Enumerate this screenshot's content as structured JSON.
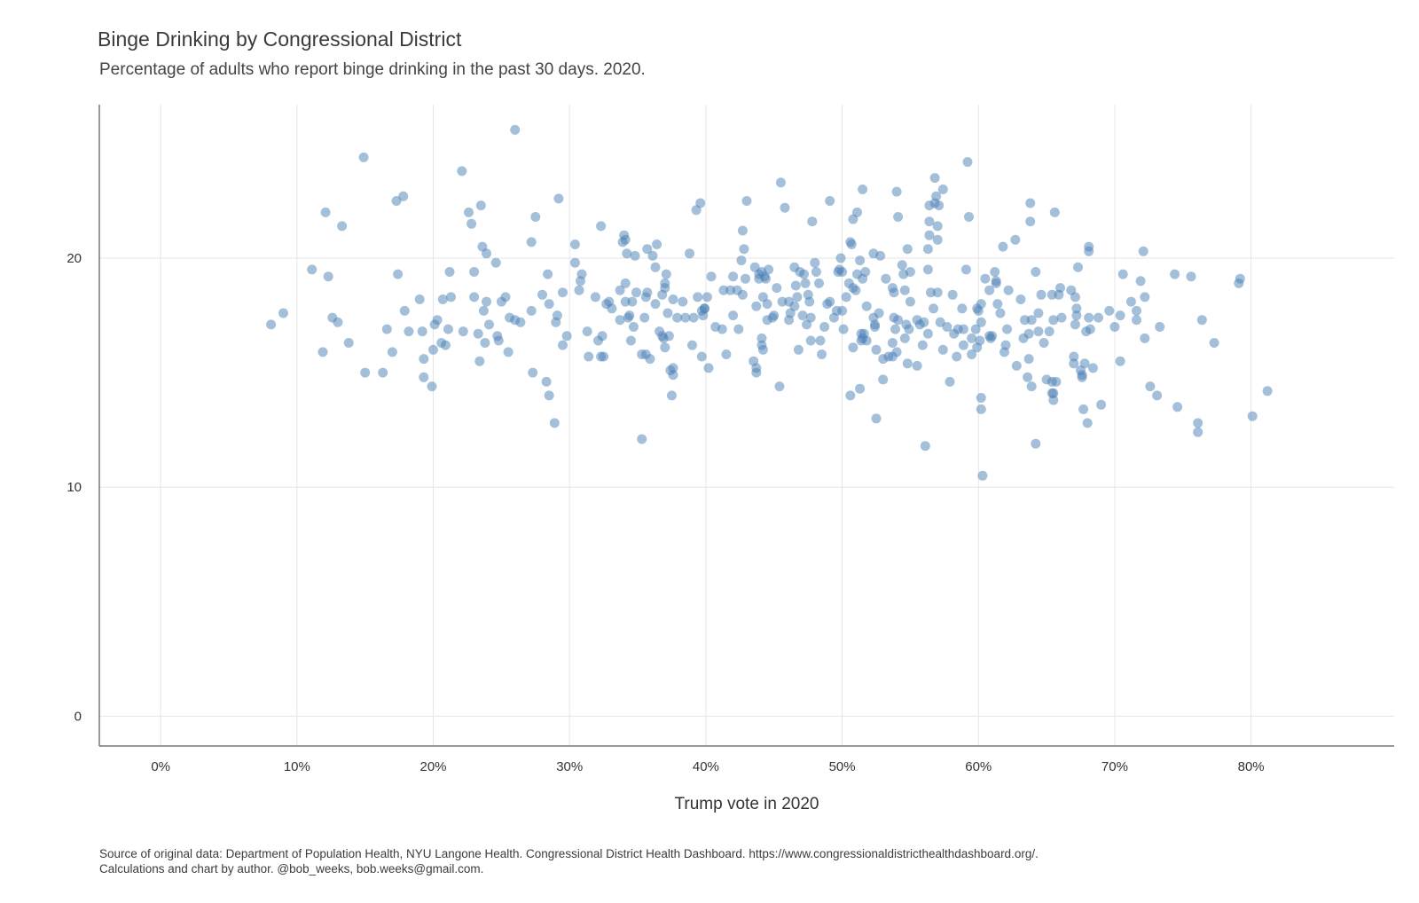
{
  "chart_data": {
    "type": "scatter",
    "title": "Binge Drinking by Congressional District",
    "subtitle": "Percentage of adults who report binge drinking in the past 30 days. 2020.",
    "xlabel": "Trump vote in 2020",
    "ylabel": "",
    "xlim": [
      -4.5,
      90.5
    ],
    "ylim": [
      -1.3,
      26.7
    ],
    "x_ticks": [
      0,
      10,
      20,
      30,
      40,
      50,
      60,
      70,
      80
    ],
    "x_tick_labels": [
      "0%",
      "10%",
      "20%",
      "30%",
      "40%",
      "50%",
      "60%",
      "70%",
      "80%"
    ],
    "y_ticks": [
      0,
      10,
      20
    ],
    "y_tick_labels": [
      "0",
      "10",
      "20"
    ],
    "grid": true,
    "point_color": "#4a7fb5",
    "points": [
      [
        8.1,
        17.1
      ],
      [
        9.0,
        17.6
      ],
      [
        11.1,
        19.5
      ],
      [
        11.9,
        15.9
      ],
      [
        12.1,
        22.0
      ],
      [
        12.3,
        19.2
      ],
      [
        12.6,
        17.4
      ],
      [
        13.0,
        17.2
      ],
      [
        13.3,
        21.4
      ],
      [
        13.8,
        16.3
      ],
      [
        14.9,
        24.4
      ],
      [
        15.0,
        15.0
      ],
      [
        16.3,
        15.0
      ],
      [
        16.6,
        16.9
      ],
      [
        17.0,
        15.9
      ],
      [
        17.3,
        22.5
      ],
      [
        17.4,
        19.3
      ],
      [
        17.8,
        22.7
      ],
      [
        17.9,
        17.7
      ],
      [
        18.2,
        16.8
      ],
      [
        19.0,
        18.2
      ],
      [
        19.2,
        16.8
      ],
      [
        19.3,
        14.8
      ],
      [
        19.3,
        15.6
      ],
      [
        19.9,
        14.4
      ],
      [
        20.0,
        16.0
      ],
      [
        20.1,
        17.1
      ],
      [
        20.3,
        17.3
      ],
      [
        20.6,
        16.3
      ],
      [
        20.7,
        18.2
      ],
      [
        20.9,
        16.2
      ],
      [
        21.1,
        16.9
      ],
      [
        21.2,
        19.4
      ],
      [
        21.3,
        18.3
      ],
      [
        22.1,
        23.8
      ],
      [
        22.2,
        16.8
      ],
      [
        22.6,
        22.0
      ],
      [
        22.8,
        21.5
      ],
      [
        23.0,
        19.4
      ],
      [
        23.0,
        18.3
      ],
      [
        23.3,
        16.7
      ],
      [
        23.4,
        15.5
      ],
      [
        23.5,
        22.3
      ],
      [
        23.6,
        20.5
      ],
      [
        23.7,
        17.7
      ],
      [
        23.8,
        16.3
      ],
      [
        23.9,
        18.1
      ],
      [
        23.9,
        20.2
      ],
      [
        24.1,
        17.1
      ],
      [
        24.6,
        19.8
      ],
      [
        24.7,
        16.6
      ],
      [
        24.8,
        16.4
      ],
      [
        25.0,
        18.1
      ],
      [
        25.3,
        18.3
      ],
      [
        25.5,
        15.9
      ],
      [
        25.6,
        17.4
      ],
      [
        26.0,
        25.6
      ],
      [
        26.0,
        17.3
      ],
      [
        26.4,
        17.2
      ],
      [
        27.2,
        20.7
      ],
      [
        27.2,
        17.7
      ],
      [
        27.3,
        15.0
      ],
      [
        27.5,
        21.8
      ],
      [
        28.0,
        18.4
      ],
      [
        28.3,
        14.6
      ],
      [
        28.4,
        19.3
      ],
      [
        28.5,
        14.0
      ],
      [
        28.5,
        18.0
      ],
      [
        28.9,
        12.8
      ],
      [
        29.0,
        17.2
      ],
      [
        29.1,
        17.5
      ],
      [
        29.2,
        22.6
      ],
      [
        29.5,
        18.5
      ],
      [
        29.5,
        16.2
      ],
      [
        29.8,
        16.6
      ],
      [
        30.4,
        19.8
      ],
      [
        30.4,
        20.6
      ],
      [
        30.7,
        18.6
      ],
      [
        30.8,
        19.0
      ],
      [
        30.9,
        19.3
      ],
      [
        31.3,
        16.8
      ],
      [
        31.4,
        15.7
      ],
      [
        31.9,
        18.3
      ],
      [
        32.1,
        16.4
      ],
      [
        32.3,
        21.4
      ],
      [
        32.3,
        15.7
      ],
      [
        32.4,
        16.6
      ],
      [
        32.5,
        15.7
      ],
      [
        32.7,
        18.0
      ],
      [
        32.9,
        18.1
      ],
      [
        33.1,
        17.8
      ],
      [
        33.7,
        17.3
      ],
      [
        33.7,
        18.6
      ],
      [
        33.9,
        20.7
      ],
      [
        34.0,
        21.0
      ],
      [
        34.1,
        20.8
      ],
      [
        34.1,
        18.9
      ],
      [
        34.1,
        18.1
      ],
      [
        34.2,
        20.2
      ],
      [
        34.3,
        17.4
      ],
      [
        34.4,
        17.5
      ],
      [
        34.5,
        16.4
      ],
      [
        34.6,
        18.1
      ],
      [
        34.7,
        17.0
      ],
      [
        34.9,
        18.5
      ],
      [
        34.8,
        20.1
      ],
      [
        35.3,
        15.8
      ],
      [
        35.3,
        12.1
      ],
      [
        35.5,
        17.4
      ],
      [
        35.6,
        15.8
      ],
      [
        35.6,
        18.3
      ],
      [
        35.7,
        20.4
      ],
      [
        35.7,
        18.5
      ],
      [
        35.9,
        15.6
      ],
      [
        36.1,
        20.1
      ],
      [
        36.3,
        18.0
      ],
      [
        36.3,
        19.6
      ],
      [
        36.4,
        20.6
      ],
      [
        36.6,
        16.8
      ],
      [
        36.8,
        16.6
      ],
      [
        36.8,
        18.4
      ],
      [
        36.9,
        16.5
      ],
      [
        37.0,
        16.1
      ],
      [
        37.0,
        18.9
      ],
      [
        37.0,
        18.7
      ],
      [
        37.1,
        19.3
      ],
      [
        37.2,
        17.6
      ],
      [
        37.3,
        16.6
      ],
      [
        37.4,
        15.1
      ],
      [
        37.5,
        14.0
      ],
      [
        37.6,
        18.2
      ],
      [
        37.6,
        15.2
      ],
      [
        37.6,
        14.9
      ],
      [
        37.9,
        17.4
      ],
      [
        38.3,
        18.1
      ],
      [
        38.5,
        17.4
      ],
      [
        38.8,
        20.2
      ],
      [
        39.0,
        16.2
      ],
      [
        39.1,
        17.4
      ],
      [
        39.3,
        22.1
      ],
      [
        39.4,
        18.3
      ],
      [
        39.6,
        22.4
      ],
      [
        39.7,
        15.7
      ],
      [
        39.7,
        17.7
      ],
      [
        39.8,
        17.5
      ],
      [
        39.9,
        17.8
      ],
      [
        39.9,
        17.8
      ],
      [
        40.1,
        18.3
      ],
      [
        40.2,
        15.2
      ],
      [
        40.4,
        19.2
      ],
      [
        40.7,
        17.0
      ],
      [
        41.2,
        16.9
      ],
      [
        41.3,
        18.6
      ],
      [
        41.5,
        15.8
      ],
      [
        41.8,
        18.6
      ],
      [
        42.0,
        17.5
      ],
      [
        42.0,
        19.2
      ],
      [
        42.3,
        18.6
      ],
      [
        42.4,
        16.9
      ],
      [
        42.6,
        19.9
      ],
      [
        42.7,
        18.4
      ],
      [
        42.7,
        21.2
      ],
      [
        42.8,
        20.4
      ],
      [
        42.9,
        19.1
      ],
      [
        43.0,
        22.5
      ],
      [
        43.5,
        15.5
      ],
      [
        43.6,
        19.6
      ],
      [
        43.7,
        15.0
      ],
      [
        43.7,
        15.2
      ],
      [
        43.7,
        17.9
      ],
      [
        43.9,
        19.1
      ],
      [
        43.9,
        19.3
      ],
      [
        44.1,
        19.4
      ],
      [
        44.1,
        16.5
      ],
      [
        44.1,
        16.2
      ],
      [
        44.2,
        16.0
      ],
      [
        44.2,
        18.3
      ],
      [
        44.3,
        19.2
      ],
      [
        44.4,
        19.1
      ],
      [
        44.5,
        18.0
      ],
      [
        44.5,
        17.3
      ],
      [
        44.6,
        19.5
      ],
      [
        44.9,
        17.4
      ],
      [
        45.0,
        17.5
      ],
      [
        45.2,
        18.7
      ],
      [
        45.4,
        14.4
      ],
      [
        45.5,
        23.3
      ],
      [
        45.6,
        18.1
      ],
      [
        45.8,
        22.2
      ],
      [
        46.1,
        17.3
      ],
      [
        46.1,
        18.1
      ],
      [
        46.2,
        17.6
      ],
      [
        46.5,
        19.6
      ],
      [
        46.5,
        17.9
      ],
      [
        46.6,
        18.8
      ],
      [
        46.7,
        18.3
      ],
      [
        46.8,
        16.0
      ],
      [
        46.9,
        19.4
      ],
      [
        47.1,
        17.5
      ],
      [
        47.2,
        19.3
      ],
      [
        47.3,
        18.9
      ],
      [
        47.4,
        17.1
      ],
      [
        47.5,
        18.4
      ],
      [
        47.6,
        18.1
      ],
      [
        47.7,
        17.4
      ],
      [
        47.7,
        16.4
      ],
      [
        47.8,
        21.6
      ],
      [
        48.0,
        19.8
      ],
      [
        48.1,
        19.4
      ],
      [
        48.3,
        18.9
      ],
      [
        48.4,
        16.4
      ],
      [
        48.5,
        15.8
      ],
      [
        48.7,
        17.0
      ],
      [
        48.9,
        18.0
      ],
      [
        49.1,
        22.5
      ],
      [
        49.1,
        18.1
      ],
      [
        49.4,
        17.4
      ],
      [
        49.6,
        17.7
      ],
      [
        49.7,
        19.4
      ],
      [
        49.8,
        19.5
      ],
      [
        49.9,
        20.0
      ],
      [
        50.0,
        19.4
      ],
      [
        50.0,
        17.7
      ],
      [
        50.1,
        16.9
      ],
      [
        50.3,
        18.3
      ],
      [
        50.5,
        18.9
      ],
      [
        50.6,
        14.0
      ],
      [
        50.6,
        20.7
      ],
      [
        50.7,
        20.6
      ],
      [
        50.8,
        18.7
      ],
      [
        50.8,
        21.7
      ],
      [
        50.8,
        16.1
      ],
      [
        51.0,
        18.6
      ],
      [
        51.1,
        19.3
      ],
      [
        51.1,
        22.0
      ],
      [
        51.3,
        14.3
      ],
      [
        51.3,
        19.9
      ],
      [
        51.4,
        16.7
      ],
      [
        51.4,
        16.4
      ],
      [
        51.5,
        19.1
      ],
      [
        51.5,
        23.0
      ],
      [
        51.5,
        16.5
      ],
      [
        51.6,
        16.7
      ],
      [
        51.7,
        19.4
      ],
      [
        51.8,
        17.9
      ],
      [
        51.8,
        16.4
      ],
      [
        52.3,
        17.4
      ],
      [
        52.3,
        20.2
      ],
      [
        52.4,
        17.1
      ],
      [
        52.4,
        17.0
      ],
      [
        52.5,
        13.0
      ],
      [
        52.5,
        16.0
      ],
      [
        52.7,
        17.6
      ],
      [
        52.8,
        20.1
      ],
      [
        53.0,
        15.6
      ],
      [
        53.0,
        14.7
      ],
      [
        53.2,
        19.1
      ],
      [
        53.4,
        15.7
      ],
      [
        53.7,
        15.7
      ],
      [
        53.7,
        16.3
      ],
      [
        53.7,
        18.7
      ],
      [
        53.8,
        18.5
      ],
      [
        53.8,
        17.4
      ],
      [
        53.9,
        16.9
      ],
      [
        54.0,
        22.9
      ],
      [
        54.0,
        15.9
      ],
      [
        54.1,
        21.8
      ],
      [
        54.1,
        17.3
      ],
      [
        54.4,
        19.7
      ],
      [
        54.5,
        19.3
      ],
      [
        54.6,
        18.6
      ],
      [
        54.6,
        16.5
      ],
      [
        54.7,
        17.1
      ],
      [
        54.8,
        20.4
      ],
      [
        54.8,
        15.4
      ],
      [
        54.9,
        16.9
      ],
      [
        55.0,
        19.4
      ],
      [
        55.0,
        18.1
      ],
      [
        55.5,
        15.3
      ],
      [
        55.5,
        17.3
      ],
      [
        55.7,
        17.1
      ],
      [
        55.9,
        16.2
      ],
      [
        56.0,
        17.2
      ],
      [
        56.1,
        11.8
      ],
      [
        56.3,
        16.7
      ],
      [
        56.3,
        20.4
      ],
      [
        56.3,
        19.5
      ],
      [
        56.4,
        21.6
      ],
      [
        56.4,
        21.0
      ],
      [
        56.4,
        22.3
      ],
      [
        56.5,
        18.5
      ],
      [
        56.7,
        17.8
      ],
      [
        56.8,
        22.4
      ],
      [
        56.8,
        23.5
      ],
      [
        56.9,
        22.7
      ],
      [
        57.0,
        18.5
      ],
      [
        57.0,
        21.4
      ],
      [
        57.0,
        20.8
      ],
      [
        57.1,
        22.3
      ],
      [
        57.2,
        17.2
      ],
      [
        57.4,
        16.0
      ],
      [
        57.4,
        23.0
      ],
      [
        57.7,
        17.0
      ],
      [
        57.9,
        14.6
      ],
      [
        58.1,
        18.4
      ],
      [
        58.2,
        16.7
      ],
      [
        58.4,
        15.7
      ],
      [
        58.5,
        16.9
      ],
      [
        58.8,
        17.8
      ],
      [
        58.9,
        16.9
      ],
      [
        58.9,
        16.2
      ],
      [
        59.2,
        24.2
      ],
      [
        59.1,
        19.5
      ],
      [
        59.3,
        21.8
      ],
      [
        59.5,
        15.8
      ],
      [
        59.5,
        16.5
      ],
      [
        59.8,
        16.9
      ],
      [
        59.9,
        16.1
      ],
      [
        59.9,
        17.8
      ],
      [
        60.0,
        17.7
      ],
      [
        60.1,
        16.4
      ],
      [
        60.2,
        17.2
      ],
      [
        60.2,
        13.4
      ],
      [
        60.2,
        13.9
      ],
      [
        60.2,
        18.0
      ],
      [
        60.3,
        10.5
      ],
      [
        60.5,
        19.1
      ],
      [
        60.8,
        16.6
      ],
      [
        60.8,
        18.6
      ],
      [
        60.9,
        16.5
      ],
      [
        61.0,
        16.6
      ],
      [
        61.2,
        19.4
      ],
      [
        61.3,
        18.9
      ],
      [
        61.3,
        19.0
      ],
      [
        61.4,
        18.0
      ],
      [
        61.6,
        17.6
      ],
      [
        61.8,
        20.5
      ],
      [
        61.9,
        15.9
      ],
      [
        62.0,
        16.2
      ],
      [
        62.1,
        16.9
      ],
      [
        62.2,
        18.6
      ],
      [
        62.7,
        20.8
      ],
      [
        62.8,
        15.3
      ],
      [
        63.1,
        18.2
      ],
      [
        63.3,
        16.5
      ],
      [
        63.4,
        17.3
      ],
      [
        63.6,
        14.8
      ],
      [
        63.7,
        16.7
      ],
      [
        63.7,
        15.6
      ],
      [
        63.8,
        22.4
      ],
      [
        63.8,
        21.6
      ],
      [
        63.9,
        17.3
      ],
      [
        63.9,
        14.4
      ],
      [
        64.2,
        11.9
      ],
      [
        64.2,
        19.4
      ],
      [
        64.4,
        16.8
      ],
      [
        64.4,
        17.6
      ],
      [
        64.6,
        18.4
      ],
      [
        64.8,
        16.3
      ],
      [
        65.0,
        14.7
      ],
      [
        65.2,
        16.8
      ],
      [
        65.4,
        18.4
      ],
      [
        65.4,
        14.6
      ],
      [
        65.4,
        14.1
      ],
      [
        65.5,
        13.8
      ],
      [
        65.5,
        14.1
      ],
      [
        65.5,
        17.3
      ],
      [
        65.6,
        22.0
      ],
      [
        65.7,
        14.6
      ],
      [
        65.9,
        18.4
      ],
      [
        66.0,
        18.7
      ],
      [
        66.1,
        17.4
      ],
      [
        66.8,
        18.6
      ],
      [
        67.0,
        15.7
      ],
      [
        67.0,
        15.4
      ],
      [
        67.1,
        18.3
      ],
      [
        67.1,
        17.1
      ],
      [
        67.2,
        17.5
      ],
      [
        67.2,
        17.8
      ],
      [
        67.3,
        19.6
      ],
      [
        67.5,
        15.1
      ],
      [
        67.6,
        14.8
      ],
      [
        67.6,
        14.9
      ],
      [
        67.7,
        13.4
      ],
      [
        67.8,
        15.4
      ],
      [
        67.9,
        16.8
      ],
      [
        68.0,
        12.8
      ],
      [
        68.1,
        17.4
      ],
      [
        68.1,
        20.5
      ],
      [
        68.1,
        20.3
      ],
      [
        68.2,
        16.9
      ],
      [
        68.4,
        15.2
      ],
      [
        68.8,
        17.4
      ],
      [
        69.0,
        13.6
      ],
      [
        69.6,
        17.7
      ],
      [
        70.0,
        17.0
      ],
      [
        70.4,
        15.5
      ],
      [
        70.4,
        17.5
      ],
      [
        70.6,
        19.3
      ],
      [
        71.2,
        18.1
      ],
      [
        71.6,
        17.7
      ],
      [
        71.6,
        17.3
      ],
      [
        71.9,
        19.0
      ],
      [
        72.2,
        18.3
      ],
      [
        72.2,
        16.5
      ],
      [
        72.1,
        20.3
      ],
      [
        72.6,
        14.4
      ],
      [
        73.1,
        14.0
      ],
      [
        73.3,
        17.0
      ],
      [
        74.4,
        19.3
      ],
      [
        74.6,
        13.5
      ],
      [
        75.6,
        19.2
      ],
      [
        76.1,
        12.4
      ],
      [
        76.1,
        12.8
      ],
      [
        76.4,
        17.3
      ],
      [
        77.3,
        16.3
      ],
      [
        79.1,
        18.9
      ],
      [
        79.2,
        19.1
      ],
      [
        80.1,
        13.1
      ],
      [
        81.2,
        14.2
      ]
    ]
  },
  "footer": {
    "source_line": "Source of original data: Department of Population Health, NYU Langone Health. Congressional District Health Dashboard. https://www.congressionaldistricthealthdashboard.org/.",
    "credit_line": "Calculations and chart by author. @bob_weeks, bob.weeks@gmail.com."
  }
}
